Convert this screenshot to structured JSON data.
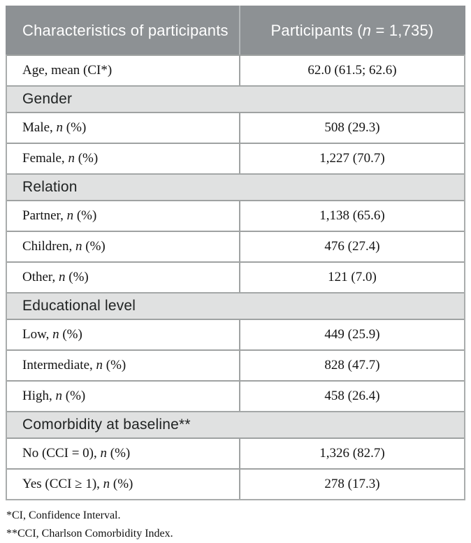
{
  "table": {
    "header": {
      "col1": "Characteristics of participants",
      "col2_pre": "Participants (",
      "col2_italic": "n",
      "col2_post": " = 1,735)"
    },
    "rows": [
      {
        "type": "data",
        "pre": "Age, mean (CI*)",
        "it": "",
        "post": "",
        "value": "62.0 (61.5; 62.6)"
      },
      {
        "type": "section",
        "label": "Gender"
      },
      {
        "type": "data",
        "pre": "Male, ",
        "it": "n",
        "post": " (%)",
        "value": "508 (29.3)"
      },
      {
        "type": "data",
        "pre": "Female, ",
        "it": "n",
        "post": " (%)",
        "value": "1,227 (70.7)"
      },
      {
        "type": "section",
        "label": "Relation"
      },
      {
        "type": "data",
        "pre": "Partner, ",
        "it": "n",
        "post": " (%)",
        "value": "1,138 (65.6)"
      },
      {
        "type": "data",
        "pre": "Children, ",
        "it": "n",
        "post": " (%)",
        "value": "476 (27.4)"
      },
      {
        "type": "data",
        "pre": "Other, ",
        "it": "n",
        "post": " (%)",
        "value": "121 (7.0)"
      },
      {
        "type": "section",
        "label": "Educational level"
      },
      {
        "type": "data",
        "pre": "Low, ",
        "it": "n",
        "post": " (%)",
        "value": "449 (25.9)"
      },
      {
        "type": "data",
        "pre": "Intermediate, ",
        "it": "n",
        "post": " (%)",
        "value": "828 (47.7)"
      },
      {
        "type": "data",
        "pre": "High, ",
        "it": "n",
        "post": " (%)",
        "value": "458 (26.4)"
      },
      {
        "type": "section",
        "label": "Comorbidity at baseline**"
      },
      {
        "type": "data",
        "pre": "No (CCI = 0), ",
        "it": "n",
        "post": " (%)",
        "value": "1,326 (82.7)"
      },
      {
        "type": "data",
        "pre": "Yes (CCI ≥ 1), ",
        "it": "n",
        "post": " (%)",
        "value": "278 (17.3)"
      }
    ]
  },
  "footnotes": [
    "*CI, Confidence Interval.",
    "**CCI, Charlson Comorbidity Index."
  ],
  "colors": {
    "header_bg": "#8d9194",
    "section_bg": "#e0e1e1",
    "border": "#9fa2a2",
    "header_text": "#ffffff"
  }
}
